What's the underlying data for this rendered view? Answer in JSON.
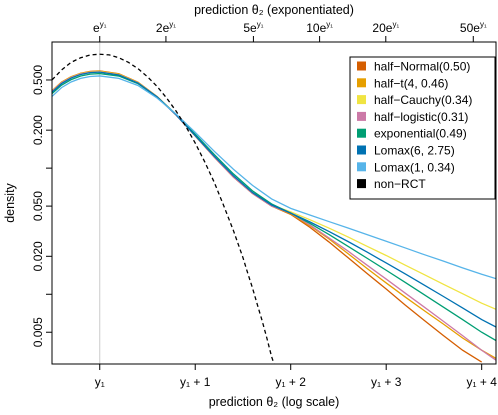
{
  "chart_data": {
    "type": "line",
    "xlabel_bottom": "prediction θ₂ (log scale)",
    "xlabel_top": "prediction θ₂ (exponentiated)",
    "ylabel": "density",
    "y_scale": "log",
    "ylim": [
      0.0028,
      1.0
    ],
    "x_range_relative_to_y1": [
      -0.5,
      4.15
    ],
    "vertical_reference_line_at": 0,
    "bottom_ticks": [
      {
        "x": 0,
        "label": "y₁"
      },
      {
        "x": 1,
        "label": "y₁ + 1"
      },
      {
        "x": 2,
        "label": "y₁ + 2"
      },
      {
        "x": 3,
        "label": "y₁ + 3"
      },
      {
        "x": 4,
        "label": "y₁ + 4"
      }
    ],
    "top_ticks": [
      {
        "factor": 1,
        "base": "e",
        "sup": "y₁"
      },
      {
        "factor": 2,
        "base": "2e",
        "sup": "y₁"
      },
      {
        "factor": 5,
        "base": "5e",
        "sup": "y₁"
      },
      {
        "factor": 10,
        "base": "10e",
        "sup": "y₁"
      },
      {
        "factor": 20,
        "base": "20e",
        "sup": "y₁"
      },
      {
        "factor": 50,
        "base": "50e",
        "sup": "y₁"
      }
    ],
    "y_ticks": [
      {
        "value": 0.005,
        "label": "0.005"
      },
      {
        "value": 0.02,
        "label": "0.020"
      },
      {
        "value": 0.05,
        "label": "0.050"
      },
      {
        "value": 0.2,
        "label": "0.200"
      },
      {
        "value": 0.5,
        "label": "0.500"
      }
    ],
    "y_minor_ticks": [
      0.01,
      0.1
    ],
    "legend_position": "top-right",
    "series": [
      {
        "name": "half−Normal(0.50)",
        "color": "#d55e00",
        "dash": "solid",
        "points": [
          [
            -0.5,
            0.41
          ],
          [
            -0.4,
            0.48
          ],
          [
            -0.3,
            0.53
          ],
          [
            -0.2,
            0.565
          ],
          [
            -0.1,
            0.585
          ],
          [
            0,
            0.59
          ],
          [
            0.2,
            0.56
          ],
          [
            0.4,
            0.48
          ],
          [
            0.6,
            0.37
          ],
          [
            0.8,
            0.265
          ],
          [
            1.0,
            0.18
          ],
          [
            1.2,
            0.122
          ],
          [
            1.4,
            0.085
          ],
          [
            1.6,
            0.063
          ],
          [
            1.8,
            0.05
          ],
          [
            2.0,
            0.043
          ],
          [
            2.2,
            0.034
          ],
          [
            2.4,
            0.026
          ],
          [
            2.6,
            0.0195
          ],
          [
            2.8,
            0.0146
          ],
          [
            3.0,
            0.011
          ],
          [
            3.2,
            0.0082
          ],
          [
            3.4,
            0.0062
          ],
          [
            3.6,
            0.0047
          ],
          [
            3.8,
            0.0036
          ],
          [
            4.0,
            0.0029
          ]
        ]
      },
      {
        "name": "half−t(4, 0.46)",
        "color": "#e69f00",
        "dash": "solid",
        "points": [
          [
            -0.5,
            0.41
          ],
          [
            -0.4,
            0.48
          ],
          [
            -0.3,
            0.53
          ],
          [
            -0.2,
            0.563
          ],
          [
            -0.1,
            0.582
          ],
          [
            0,
            0.587
          ],
          [
            0.2,
            0.557
          ],
          [
            0.4,
            0.478
          ],
          [
            0.6,
            0.369
          ],
          [
            0.8,
            0.264
          ],
          [
            1.0,
            0.18
          ],
          [
            1.2,
            0.122
          ],
          [
            1.4,
            0.085
          ],
          [
            1.6,
            0.063
          ],
          [
            1.8,
            0.05
          ],
          [
            2.0,
            0.0435
          ],
          [
            2.2,
            0.035
          ],
          [
            2.4,
            0.0275
          ],
          [
            2.6,
            0.021
          ],
          [
            2.8,
            0.016
          ],
          [
            3.0,
            0.0123
          ],
          [
            3.2,
            0.0095
          ],
          [
            3.4,
            0.0074
          ],
          [
            3.6,
            0.0058
          ],
          [
            3.8,
            0.0045
          ],
          [
            4.0,
            0.0036
          ],
          [
            4.15,
            0.0031
          ]
        ]
      },
      {
        "name": "half−Cauchy(0.34)",
        "color": "#f0e442",
        "dash": "solid",
        "points": [
          [
            -0.5,
            0.405
          ],
          [
            -0.4,
            0.475
          ],
          [
            -0.3,
            0.525
          ],
          [
            -0.2,
            0.56
          ],
          [
            -0.1,
            0.578
          ],
          [
            0,
            0.583
          ],
          [
            0.2,
            0.553
          ],
          [
            0.4,
            0.476
          ],
          [
            0.6,
            0.368
          ],
          [
            0.8,
            0.264
          ],
          [
            1.0,
            0.18
          ],
          [
            1.2,
            0.123
          ],
          [
            1.4,
            0.086
          ],
          [
            1.6,
            0.064
          ],
          [
            1.8,
            0.051
          ],
          [
            2.0,
            0.045
          ],
          [
            2.2,
            0.039
          ],
          [
            2.4,
            0.0335
          ],
          [
            2.6,
            0.0285
          ],
          [
            2.8,
            0.024
          ],
          [
            3.0,
            0.0203
          ],
          [
            3.2,
            0.017
          ],
          [
            3.4,
            0.0143
          ],
          [
            3.6,
            0.012
          ],
          [
            3.8,
            0.0101
          ],
          [
            4.0,
            0.0085
          ],
          [
            4.15,
            0.0076
          ]
        ]
      },
      {
        "name": "half−logistic(0.31)",
        "color": "#cc79a7",
        "dash": "solid",
        "points": [
          [
            -0.5,
            0.405
          ],
          [
            -0.4,
            0.475
          ],
          [
            -0.3,
            0.523
          ],
          [
            -0.2,
            0.557
          ],
          [
            -0.1,
            0.575
          ],
          [
            0,
            0.58
          ],
          [
            0.2,
            0.55
          ],
          [
            0.4,
            0.474
          ],
          [
            0.6,
            0.367
          ],
          [
            0.8,
            0.263
          ],
          [
            1.0,
            0.18
          ],
          [
            1.2,
            0.122
          ],
          [
            1.4,
            0.085
          ],
          [
            1.6,
            0.063
          ],
          [
            1.8,
            0.05
          ],
          [
            2.0,
            0.044
          ],
          [
            2.2,
            0.0355
          ],
          [
            2.4,
            0.028
          ],
          [
            2.6,
            0.022
          ],
          [
            2.8,
            0.017
          ],
          [
            3.0,
            0.0132
          ],
          [
            3.2,
            0.0102
          ],
          [
            3.4,
            0.0079
          ],
          [
            3.6,
            0.0061
          ],
          [
            3.8,
            0.0047
          ],
          [
            4.0,
            0.0036
          ],
          [
            4.15,
            0.003
          ]
        ]
      },
      {
        "name": "exponential(0.49)",
        "color": "#009e73",
        "dash": "solid",
        "points": [
          [
            -0.5,
            0.39
          ],
          [
            -0.4,
            0.455
          ],
          [
            -0.3,
            0.503
          ],
          [
            -0.2,
            0.538
          ],
          [
            -0.1,
            0.556
          ],
          [
            0,
            0.562
          ],
          [
            0.2,
            0.537
          ],
          [
            0.4,
            0.468
          ],
          [
            0.6,
            0.367
          ],
          [
            0.8,
            0.267
          ],
          [
            1.0,
            0.186
          ],
          [
            1.2,
            0.128
          ],
          [
            1.4,
            0.09
          ],
          [
            1.6,
            0.066
          ],
          [
            1.8,
            0.052
          ],
          [
            2.0,
            0.044
          ],
          [
            2.2,
            0.0365
          ],
          [
            2.4,
            0.0298
          ],
          [
            2.6,
            0.024
          ],
          [
            2.8,
            0.0193
          ],
          [
            3.0,
            0.0155
          ],
          [
            3.2,
            0.0124
          ],
          [
            3.4,
            0.0099
          ],
          [
            3.6,
            0.0079
          ],
          [
            3.8,
            0.0063
          ],
          [
            4.0,
            0.005
          ],
          [
            4.15,
            0.0043
          ]
        ]
      },
      {
        "name": "Lomax(6, 2.75)",
        "color": "#0072b2",
        "dash": "solid",
        "points": [
          [
            -0.5,
            0.4
          ],
          [
            -0.4,
            0.468
          ],
          [
            -0.3,
            0.518
          ],
          [
            -0.2,
            0.553
          ],
          [
            -0.1,
            0.572
          ],
          [
            0,
            0.577
          ],
          [
            0.2,
            0.548
          ],
          [
            0.4,
            0.473
          ],
          [
            0.6,
            0.367
          ],
          [
            0.8,
            0.264
          ],
          [
            1.0,
            0.181
          ],
          [
            1.2,
            0.124
          ],
          [
            1.4,
            0.087
          ],
          [
            1.6,
            0.064
          ],
          [
            1.8,
            0.051
          ],
          [
            2.0,
            0.044
          ],
          [
            2.2,
            0.0375
          ],
          [
            2.4,
            0.0315
          ],
          [
            2.6,
            0.0262
          ],
          [
            2.8,
            0.0216
          ],
          [
            3.0,
            0.0177
          ],
          [
            3.2,
            0.0145
          ],
          [
            3.4,
            0.0118
          ],
          [
            3.6,
            0.0096
          ],
          [
            3.8,
            0.0078
          ],
          [
            4.0,
            0.0063
          ],
          [
            4.15,
            0.0055
          ]
        ]
      },
      {
        "name": "Lomax(1, 0.34)",
        "color": "#56b4e9",
        "dash": "solid",
        "points": [
          [
            -0.5,
            0.37
          ],
          [
            -0.4,
            0.435
          ],
          [
            -0.3,
            0.482
          ],
          [
            -0.2,
            0.515
          ],
          [
            -0.1,
            0.533
          ],
          [
            0,
            0.538
          ],
          [
            0.2,
            0.515
          ],
          [
            0.4,
            0.452
          ],
          [
            0.6,
            0.36
          ],
          [
            0.8,
            0.268
          ],
          [
            1.0,
            0.192
          ],
          [
            1.2,
            0.136
          ],
          [
            1.4,
            0.098
          ],
          [
            1.6,
            0.073
          ],
          [
            1.8,
            0.057
          ],
          [
            2.0,
            0.048
          ],
          [
            2.2,
            0.0425
          ],
          [
            2.4,
            0.0377
          ],
          [
            2.6,
            0.0335
          ],
          [
            2.8,
            0.0297
          ],
          [
            3.0,
            0.0263
          ],
          [
            3.2,
            0.0233
          ],
          [
            3.4,
            0.0206
          ],
          [
            3.6,
            0.0183
          ],
          [
            3.8,
            0.0162
          ],
          [
            4.0,
            0.0144
          ],
          [
            4.15,
            0.0133
          ]
        ]
      },
      {
        "name": "non−RCT",
        "color": "#000000",
        "dash": "dashed",
        "points": [
          [
            -0.5,
            0.5
          ],
          [
            -0.4,
            0.6
          ],
          [
            -0.3,
            0.69
          ],
          [
            -0.2,
            0.75
          ],
          [
            -0.1,
            0.79
          ],
          [
            0,
            0.8
          ],
          [
            0.1,
            0.79
          ],
          [
            0.2,
            0.75
          ],
          [
            0.3,
            0.69
          ],
          [
            0.4,
            0.615
          ],
          [
            0.5,
            0.53
          ],
          [
            0.6,
            0.445
          ],
          [
            0.7,
            0.36
          ],
          [
            0.8,
            0.283
          ],
          [
            0.9,
            0.215
          ],
          [
            1.0,
            0.158
          ],
          [
            1.1,
            0.112
          ],
          [
            1.2,
            0.077
          ],
          [
            1.3,
            0.05
          ],
          [
            1.4,
            0.032
          ],
          [
            1.5,
            0.0195
          ],
          [
            1.55,
            0.0147
          ],
          [
            1.6,
            0.0112
          ],
          [
            1.65,
            0.0083
          ],
          [
            1.7,
            0.0062
          ],
          [
            1.75,
            0.0045
          ],
          [
            1.8,
            0.0032
          ],
          [
            1.84,
            0.0026
          ]
        ]
      }
    ]
  }
}
